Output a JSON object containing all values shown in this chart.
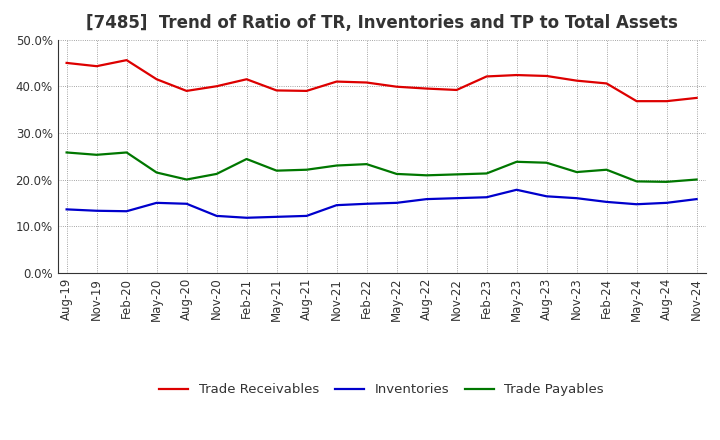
{
  "title": "[7485]  Trend of Ratio of TR, Inventories and TP to Total Assets",
  "labels": [
    "Aug-19",
    "Nov-19",
    "Feb-20",
    "May-20",
    "Aug-20",
    "Nov-20",
    "Feb-21",
    "May-21",
    "Aug-21",
    "Nov-21",
    "Feb-22",
    "May-22",
    "Aug-22",
    "Nov-22",
    "Feb-23",
    "May-23",
    "Aug-23",
    "Nov-23",
    "Feb-24",
    "May-24",
    "Aug-24",
    "Nov-24"
  ],
  "trade_receivables": [
    0.45,
    0.443,
    0.456,
    0.415,
    0.39,
    0.4,
    0.415,
    0.391,
    0.39,
    0.41,
    0.408,
    0.399,
    0.395,
    0.392,
    0.421,
    0.424,
    0.422,
    0.412,
    0.406,
    0.368,
    0.368,
    0.375
  ],
  "inventories": [
    0.136,
    0.133,
    0.132,
    0.15,
    0.148,
    0.122,
    0.118,
    0.12,
    0.122,
    0.145,
    0.148,
    0.15,
    0.158,
    0.16,
    0.162,
    0.178,
    0.164,
    0.16,
    0.152,
    0.147,
    0.15,
    0.158
  ],
  "trade_payables": [
    0.258,
    0.253,
    0.258,
    0.215,
    0.2,
    0.212,
    0.244,
    0.219,
    0.221,
    0.23,
    0.233,
    0.212,
    0.209,
    0.211,
    0.213,
    0.238,
    0.236,
    0.216,
    0.221,
    0.196,
    0.195,
    0.2
  ],
  "ylim": [
    0.0,
    0.5
  ],
  "yticks": [
    0.0,
    0.1,
    0.2,
    0.3,
    0.4,
    0.5
  ],
  "color_tr": "#dd0000",
  "color_inv": "#0000cc",
  "color_tp": "#007700",
  "bg_color": "#ffffff",
  "grid_color": "#888888",
  "title_fontsize": 12,
  "title_color": "#333333",
  "tick_fontsize": 8.5,
  "legend_fontsize": 9.5
}
